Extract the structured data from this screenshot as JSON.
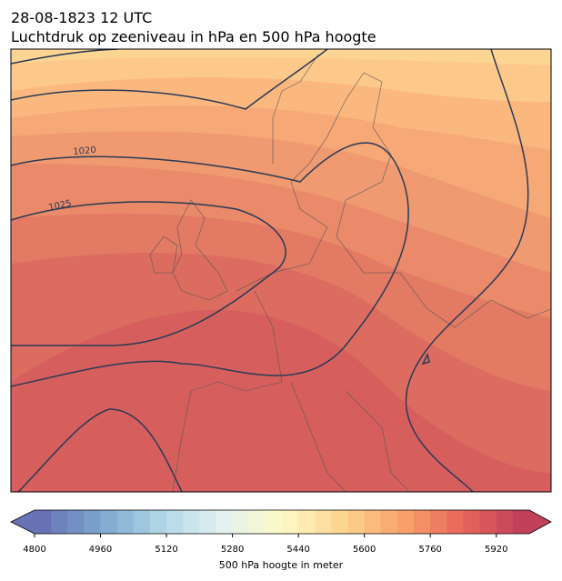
{
  "header": {
    "date": "28-08-1823 12 UTC",
    "title": "Luchtdruk op zeeniveau in hPa en 500 hPa hoogte"
  },
  "map": {
    "contour_labels": [
      "1020",
      "1025"
    ]
  },
  "colorbar": {
    "ticks": [
      4800,
      4960,
      5120,
      5280,
      5440,
      5600,
      5760,
      5920
    ],
    "range": [
      4800,
      6000
    ],
    "label": "500 hPa hoogte in meter"
  }
}
